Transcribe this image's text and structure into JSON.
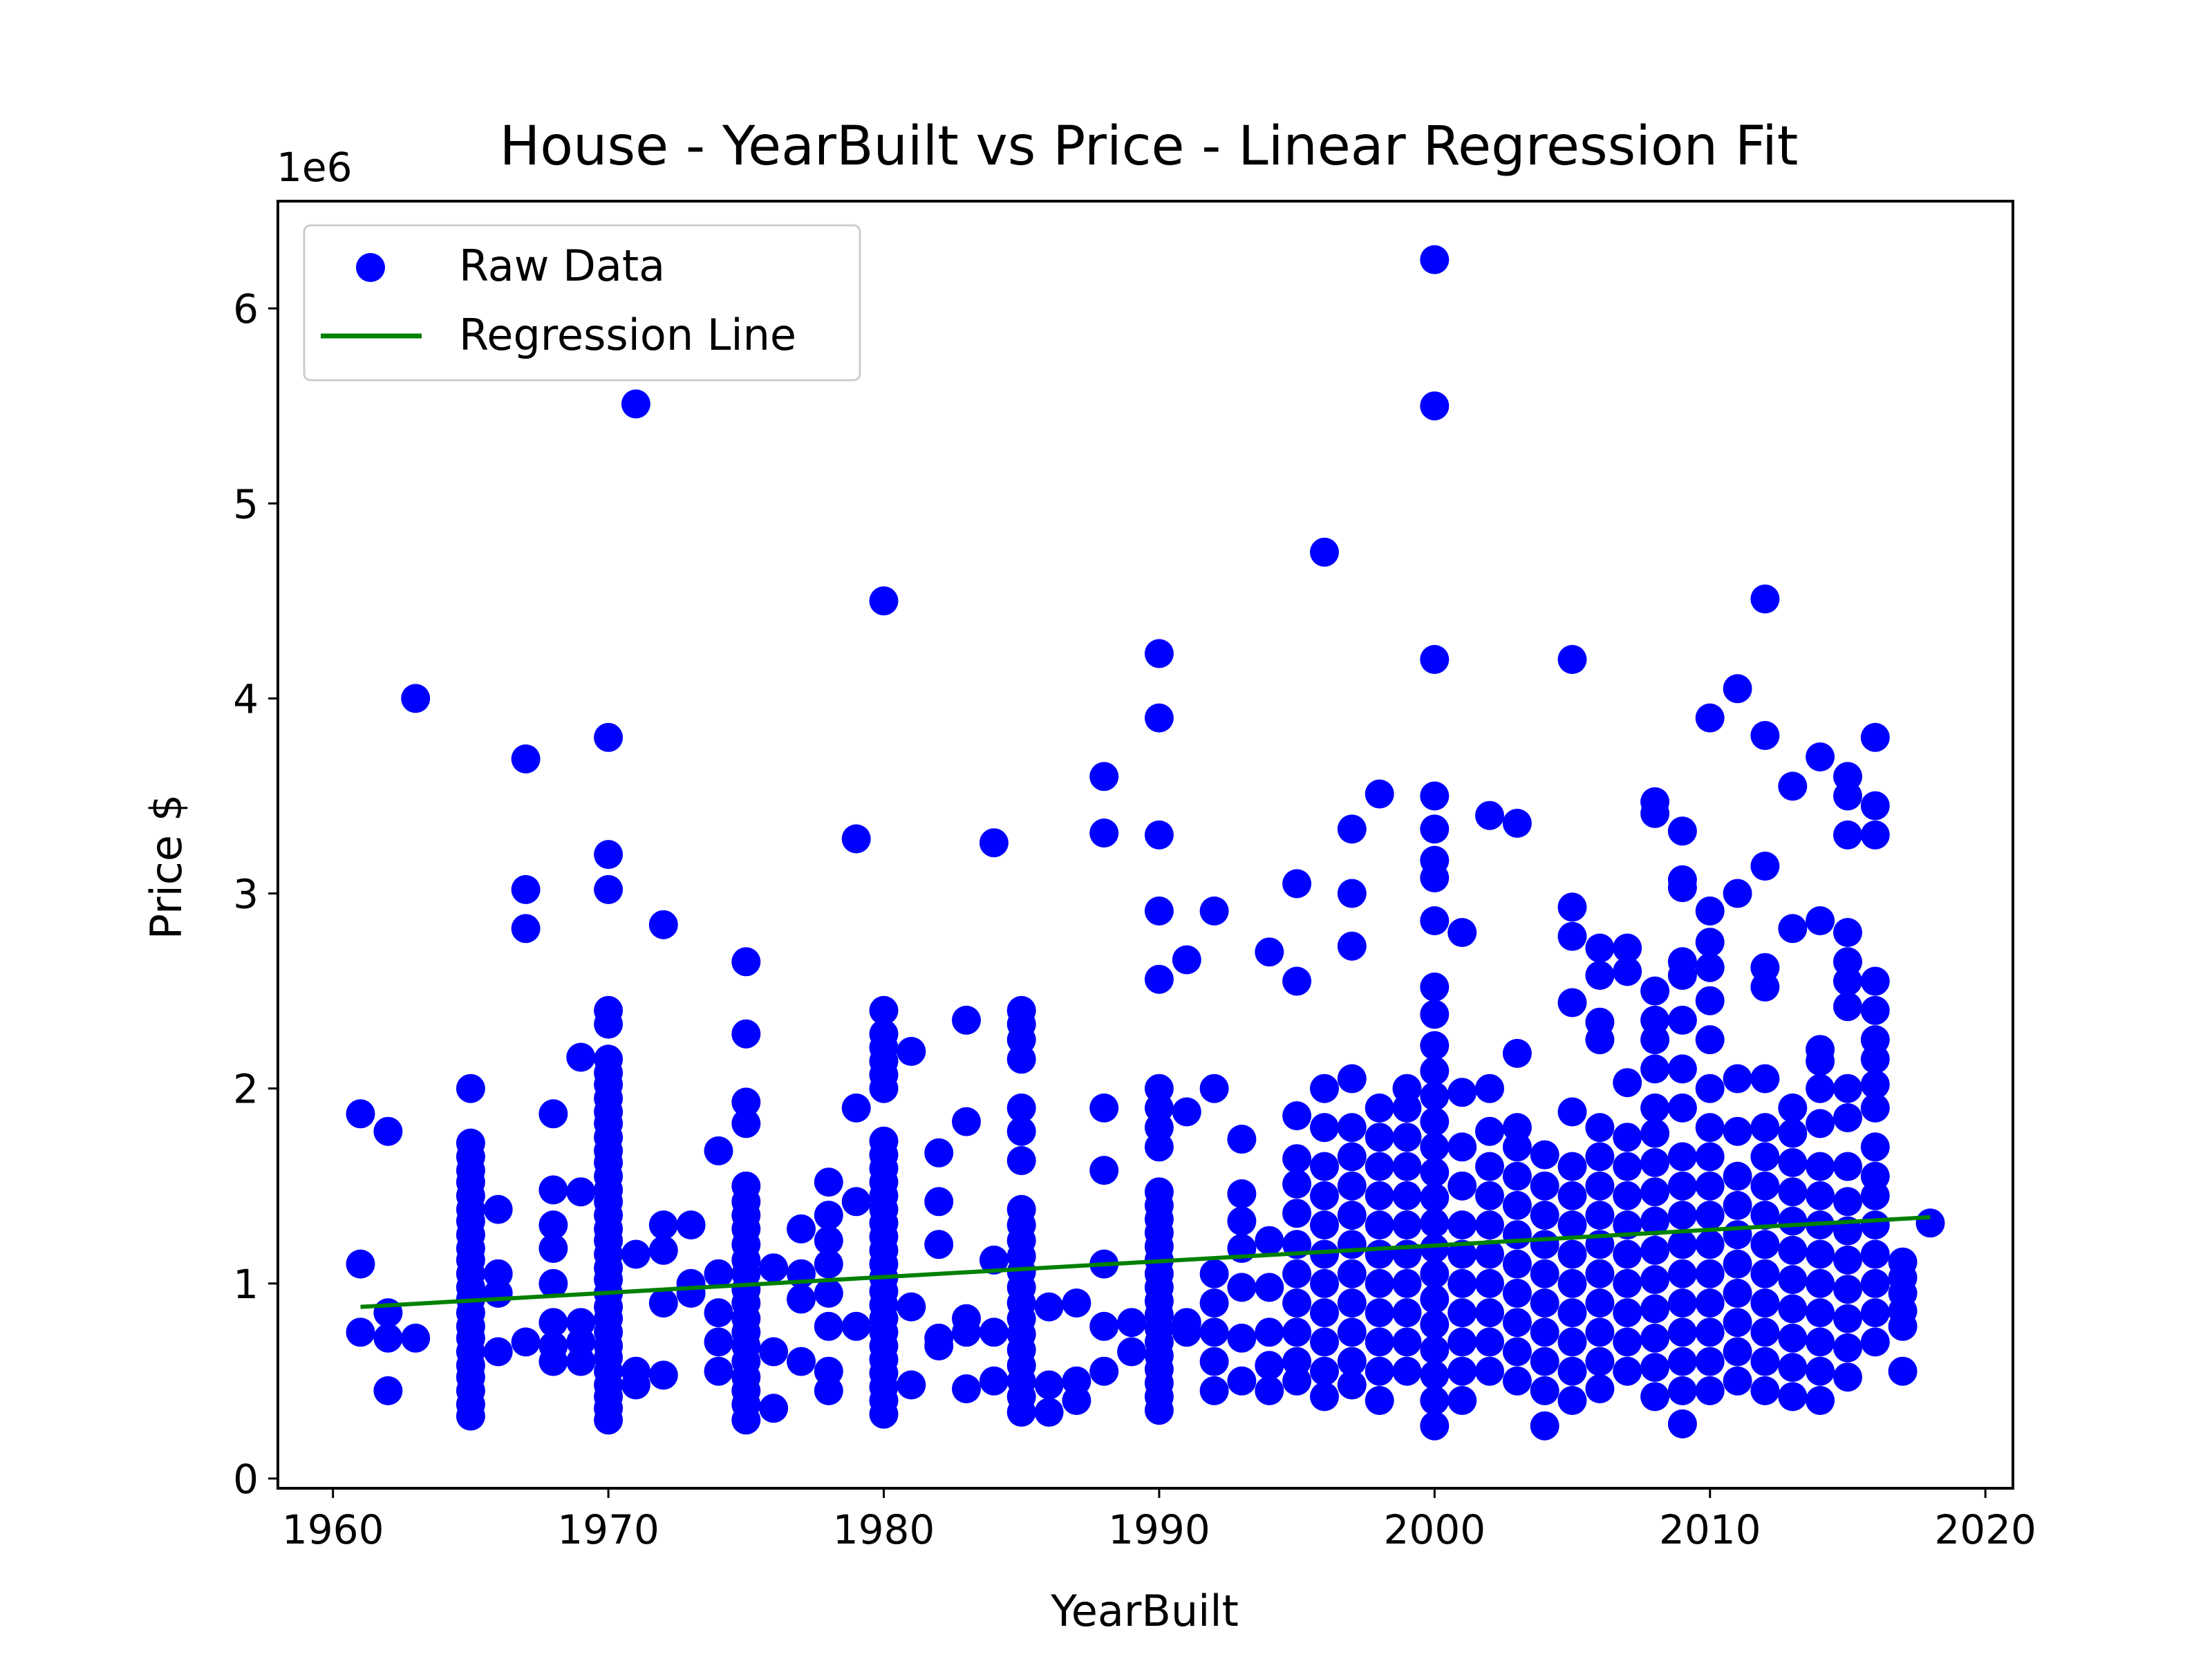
{
  "chart_data": {
    "type": "scatter",
    "title": "House - YearBuilt vs Price - Linear Regression Fit",
    "xlabel": "YearBuilt",
    "ylabel": "Price $",
    "y_offset_label": "1e6",
    "xlim": [
      1958,
      2021
    ],
    "ylim": [
      -0.05,
      6.55
    ],
    "y_scale_multiplier": 1000000,
    "x_ticks": [
      1960,
      1970,
      1980,
      1990,
      2000,
      2010,
      2020
    ],
    "x_tick_labels": [
      "1960",
      "1970",
      "1980",
      "1990",
      "2000",
      "2010",
      "2020"
    ],
    "y_ticks": [
      0,
      1,
      2,
      3,
      4,
      5,
      6
    ],
    "y_tick_labels": [
      "0",
      "1",
      "2",
      "3",
      "4",
      "5",
      "6"
    ],
    "grid": false,
    "legend": {
      "placement": "top-left",
      "entries": [
        {
          "label": "Raw Data",
          "kind": "marker",
          "color": "#0000ff"
        },
        {
          "label": "Regression Line",
          "kind": "line",
          "color": "#008000"
        }
      ]
    },
    "series": [
      {
        "name": "Raw Data",
        "kind": "scatter",
        "color": "#0000ff",
        "columns": [
          {
            "x": 1961,
            "y": [
              0.75,
              1.1,
              1.87
            ]
          },
          {
            "x": 1962,
            "y": [
              0.45,
              0.72,
              0.85,
              1.78
            ]
          },
          {
            "x": 1963,
            "y": [
              0.72,
              4.0
            ]
          },
          {
            "x": 1965,
            "y": [
              0.32,
              0.38,
              0.45,
              0.52,
              0.58,
              0.65,
              0.72,
              0.78,
              0.85,
              0.92,
              0.98,
              1.05,
              1.12,
              1.18,
              1.25,
              1.32,
              1.38,
              1.45,
              1.52,
              1.58,
              1.65,
              1.72,
              2.0
            ]
          },
          {
            "x": 1966,
            "y": [
              0.65,
              0.95,
              1.05,
              1.38
            ]
          },
          {
            "x": 1967,
            "y": [
              0.7,
              2.82,
              3.02,
              3.69
            ]
          },
          {
            "x": 1968,
            "y": [
              0.6,
              0.68,
              0.8,
              1.0,
              1.18,
              1.3,
              1.48,
              1.87
            ]
          },
          {
            "x": 1969,
            "y": [
              0.6,
              0.7,
              0.8,
              1.47,
              2.16
            ]
          },
          {
            "x": 1970,
            "y": [
              0.3,
              0.36,
              0.42,
              0.48,
              0.55,
              0.62,
              0.68,
              0.75,
              0.82,
              0.88,
              0.95,
              1.02,
              1.08,
              1.15,
              1.22,
              1.28,
              1.35,
              1.42,
              1.48,
              1.55,
              1.62,
              1.68,
              1.75,
              1.82,
              1.88,
              1.95,
              2.02,
              2.08,
              2.15,
              2.33,
              2.4,
              3.02,
              3.2,
              3.8
            ]
          },
          {
            "x": 1971,
            "y": [
              0.48,
              0.55,
              1.15,
              5.51
            ]
          },
          {
            "x": 1972,
            "y": [
              0.53,
              0.9,
              1.17,
              1.3,
              2.84
            ]
          },
          {
            "x": 1973,
            "y": [
              0.95,
              1.0,
              1.3
            ]
          },
          {
            "x": 1974,
            "y": [
              0.55,
              0.7,
              0.85,
              1.05,
              1.68
            ]
          },
          {
            "x": 1975,
            "y": [
              0.3,
              0.38,
              0.45,
              0.52,
              0.6,
              0.68,
              0.75,
              0.82,
              0.9,
              0.97,
              1.05,
              1.12,
              1.2,
              1.28,
              1.35,
              1.42,
              1.5,
              1.82,
              1.93,
              2.28,
              2.65
            ]
          },
          {
            "x": 1976,
            "y": [
              0.36,
              0.65,
              1.08
            ]
          },
          {
            "x": 1977,
            "y": [
              0.6,
              0.92,
              1.05,
              1.28
            ]
          },
          {
            "x": 1978,
            "y": [
              0.45,
              0.55,
              0.78,
              0.95,
              1.1,
              1.22,
              1.35,
              1.52
            ]
          },
          {
            "x": 1979,
            "y": [
              0.78,
              1.42,
              1.9,
              3.28
            ]
          },
          {
            "x": 1980,
            "y": [
              0.33,
              0.4,
              0.47,
              0.54,
              0.61,
              0.68,
              0.75,
              0.82,
              0.89,
              0.96,
              1.03,
              1.1,
              1.17,
              1.24,
              1.31,
              1.38,
              1.45,
              1.52,
              1.59,
              1.66,
              1.73,
              2.0,
              2.07,
              2.14,
              2.21,
              2.28,
              2.4,
              4.5
            ]
          },
          {
            "x": 1981,
            "y": [
              0.48,
              0.88,
              2.19
            ]
          },
          {
            "x": 1982,
            "y": [
              0.68,
              0.72,
              1.2,
              1.42,
              1.67
            ]
          },
          {
            "x": 1983,
            "y": [
              0.46,
              0.75,
              0.82,
              1.83,
              2.35
            ]
          },
          {
            "x": 1984,
            "y": [
              0.5,
              0.75,
              1.12,
              3.26
            ]
          },
          {
            "x": 1985,
            "y": [
              0.34,
              0.42,
              0.5,
              0.58,
              0.66,
              0.74,
              0.82,
              0.9,
              0.98,
              1.06,
              1.14,
              1.22,
              1.3,
              1.38,
              1.63,
              1.78,
              1.9,
              2.15,
              2.25,
              2.33,
              2.4
            ]
          },
          {
            "x": 1986,
            "y": [
              0.34,
              0.48,
              0.88
            ]
          },
          {
            "x": 1987,
            "y": [
              0.4,
              0.5,
              0.9
            ]
          },
          {
            "x": 1988,
            "y": [
              0.55,
              0.78,
              1.1,
              1.58,
              1.9,
              3.31,
              3.6
            ]
          },
          {
            "x": 1989,
            "y": [
              0.65,
              0.8
            ]
          },
          {
            "x": 1990,
            "y": [
              0.35,
              0.42,
              0.49,
              0.56,
              0.63,
              0.7,
              0.77,
              0.84,
              0.91,
              0.98,
              1.05,
              1.12,
              1.19,
              1.26,
              1.33,
              1.4,
              1.47,
              1.7,
              1.8,
              1.9,
              2.0,
              2.56,
              2.91,
              3.3,
              3.9,
              4.23
            ]
          },
          {
            "x": 1991,
            "y": [
              0.75,
              0.8,
              1.88,
              2.66
            ]
          },
          {
            "x": 1992,
            "y": [
              0.45,
              0.6,
              0.75,
              0.9,
              1.05,
              2.0,
              2.91
            ]
          },
          {
            "x": 1993,
            "y": [
              0.5,
              0.72,
              0.98,
              1.18,
              1.32,
              1.46,
              1.74
            ]
          },
          {
            "x": 1994,
            "y": [
              0.45,
              0.58,
              0.75,
              0.98,
              1.22,
              2.7
            ]
          },
          {
            "x": 1995,
            "y": [
              0.5,
              0.6,
              0.75,
              0.9,
              1.05,
              1.2,
              1.36,
              1.51,
              1.64,
              1.86,
              2.55,
              3.05
            ]
          },
          {
            "x": 1996,
            "y": [
              0.42,
              0.55,
              0.7,
              0.85,
              1.0,
              1.15,
              1.3,
              1.45,
              1.6,
              1.8,
              2.0,
              4.75
            ]
          },
          {
            "x": 1997,
            "y": [
              0.48,
              0.6,
              0.75,
              0.9,
              1.05,
              1.2,
              1.35,
              1.5,
              1.65,
              1.8,
              2.05,
              2.73,
              3.0,
              3.33
            ]
          },
          {
            "x": 1998,
            "y": [
              0.4,
              0.55,
              0.7,
              0.85,
              1.0,
              1.15,
              1.3,
              1.45,
              1.6,
              1.75,
              1.9,
              3.51
            ]
          },
          {
            "x": 1999,
            "y": [
              0.55,
              0.7,
              0.85,
              1.0,
              1.15,
              1.3,
              1.45,
              1.6,
              1.75,
              1.9,
              2.0
            ]
          },
          {
            "x": 2000,
            "y": [
              0.27,
              0.4,
              0.53,
              0.66,
              0.79,
              0.92,
              1.05,
              1.18,
              1.31,
              1.44,
              1.57,
              1.7,
              1.83,
              1.96,
              2.09,
              2.22,
              2.38,
              2.52,
              2.86,
              3.08,
              3.17,
              3.33,
              3.5,
              4.2,
              5.5,
              6.25
            ]
          },
          {
            "x": 2001,
            "y": [
              0.4,
              0.55,
              0.7,
              0.85,
              1.0,
              1.15,
              1.3,
              1.5,
              1.7,
              1.98,
              2.8
            ]
          },
          {
            "x": 2002,
            "y": [
              0.55,
              0.7,
              0.85,
              1.0,
              1.15,
              1.3,
              1.45,
              1.6,
              1.78,
              2.0,
              3.4
            ]
          },
          {
            "x": 2003,
            "y": [
              0.5,
              0.65,
              0.8,
              0.95,
              1.1,
              1.25,
              1.4,
              1.55,
              1.7,
              1.8,
              2.18,
              3.36
            ]
          },
          {
            "x": 2004,
            "y": [
              0.27,
              0.45,
              0.6,
              0.75,
              0.9,
              1.05,
              1.2,
              1.35,
              1.5,
              1.66
            ]
          },
          {
            "x": 2005,
            "y": [
              0.4,
              0.55,
              0.7,
              0.85,
              1.0,
              1.15,
              1.3,
              1.45,
              1.6,
              1.88,
              2.44,
              2.78,
              2.93,
              4.2
            ]
          },
          {
            "x": 2006,
            "y": [
              0.46,
              0.6,
              0.75,
              0.9,
              1.05,
              1.2,
              1.35,
              1.5,
              1.65,
              1.8,
              2.25,
              2.34,
              2.58,
              2.72
            ]
          },
          {
            "x": 2007,
            "y": [
              0.55,
              0.7,
              0.85,
              1.0,
              1.15,
              1.3,
              1.45,
              1.6,
              1.75,
              2.03,
              2.6,
              2.72
            ]
          },
          {
            "x": 2008,
            "y": [
              0.42,
              0.57,
              0.72,
              0.87,
              1.02,
              1.17,
              1.32,
              1.47,
              1.62,
              1.77,
              1.9,
              2.1,
              2.25,
              2.35,
              2.5,
              3.41,
              3.47
            ]
          },
          {
            "x": 2009,
            "y": [
              0.28,
              0.45,
              0.6,
              0.75,
              0.9,
              1.05,
              1.2,
              1.35,
              1.5,
              1.65,
              1.9,
              2.1,
              2.35,
              2.58,
              2.65,
              3.03,
              3.07,
              3.32
            ]
          },
          {
            "x": 2010,
            "y": [
              0.45,
              0.6,
              0.75,
              0.9,
              1.05,
              1.2,
              1.35,
              1.5,
              1.65,
              1.8,
              2.0,
              2.25,
              2.45,
              2.62,
              2.75,
              2.91,
              3.9
            ]
          },
          {
            "x": 2011,
            "y": [
              0.5,
              0.65,
              0.8,
              0.95,
              1.1,
              1.25,
              1.4,
              1.55,
              1.78,
              2.05,
              3.0,
              4.05
            ]
          },
          {
            "x": 2012,
            "y": [
              0.45,
              0.6,
              0.75,
              0.9,
              1.05,
              1.2,
              1.35,
              1.5,
              1.65,
              1.8,
              2.05,
              2.52,
              2.62,
              3.14,
              3.81,
              4.51
            ]
          },
          {
            "x": 2013,
            "y": [
              0.42,
              0.57,
              0.72,
              0.87,
              1.02,
              1.17,
              1.32,
              1.47,
              1.62,
              1.77,
              1.9,
              2.82,
              3.55
            ]
          },
          {
            "x": 2014,
            "y": [
              0.4,
              0.55,
              0.7,
              0.85,
              1.0,
              1.15,
              1.3,
              1.45,
              1.6,
              1.82,
              2.0,
              2.14,
              2.2,
              2.86,
              3.7
            ]
          },
          {
            "x": 2015,
            "y": [
              0.52,
              0.67,
              0.82,
              0.97,
              1.12,
              1.27,
              1.42,
              1.6,
              1.85,
              2.0,
              2.42,
              2.55,
              2.65,
              2.8,
              3.3,
              3.5,
              3.6
            ]
          },
          {
            "x": 2016,
            "y": [
              0.7,
              0.85,
              1.0,
              1.15,
              1.3,
              1.45,
              1.55,
              1.7,
              1.9,
              2.02,
              2.15,
              2.25,
              2.4,
              2.55,
              3.3,
              3.45,
              3.8
            ]
          },
          {
            "x": 2017,
            "y": [
              0.55,
              0.78,
              0.86,
              0.95,
              1.03,
              1.11
            ]
          },
          {
            "x": 2018,
            "y": [
              1.31
            ]
          }
        ]
      },
      {
        "name": "Regression Line",
        "kind": "line",
        "color": "#008000",
        "x": [
          1961,
          2018
        ],
        "y": [
          0.88,
          1.34
        ]
      }
    ]
  }
}
